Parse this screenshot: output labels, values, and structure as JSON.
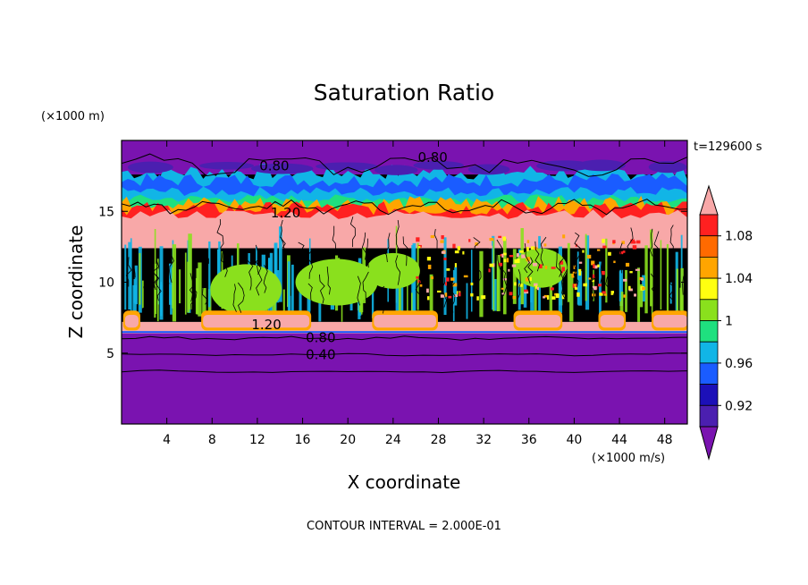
{
  "chart_data": {
    "type": "heatmap",
    "title": "Saturation Ratio",
    "xlabel": "X coordinate",
    "ylabel": "Z coordinate",
    "x_units": "(×1000 m/s)",
    "y_units": "(×1000 m)",
    "time_label": "t=129600 s",
    "footer": "CONTOUR INTERVAL = 2.000E-01",
    "xlim": [
      0,
      50
    ],
    "ylim": [
      0,
      20
    ],
    "x_ticks": [
      4,
      8,
      12,
      16,
      20,
      24,
      28,
      32,
      36,
      40,
      44,
      48
    ],
    "y_ticks": [
      5,
      10,
      15
    ],
    "colorbar": {
      "labels": [
        "1.08",
        "1.04",
        "1",
        "0.96",
        "0.92"
      ],
      "levels": [
        {
          "range": "< 0.90",
          "color": "#7a13b0"
        },
        {
          "range": "0.90-0.92",
          "color": "#4b1fb0"
        },
        {
          "range": "0.92-0.94",
          "color": "#1c10b8"
        },
        {
          "range": "0.94-0.96",
          "color": "#1a5cff"
        },
        {
          "range": "0.96-0.98",
          "color": "#11b5e6"
        },
        {
          "range": "0.98-1.00",
          "color": "#1fe07f"
        },
        {
          "range": "1.00-1.02",
          "color": "#8ae01d"
        },
        {
          "range": "1.02-1.04",
          "color": "#ffff10"
        },
        {
          "range": "1.04-1.06",
          "color": "#ffa500"
        },
        {
          "range": "1.06-1.08",
          "color": "#ff6a00"
        },
        {
          "range": "1.08-1.10",
          "color": "#ff2020"
        },
        {
          "range": "> 1.10",
          "color": "#f8a8a8"
        }
      ]
    },
    "bands": [
      {
        "z_range": [
          0,
          6.4
        ],
        "level": "< 0.90",
        "description": "lower dry layer"
      },
      {
        "z_range": [
          6.4,
          7.2
        ],
        "level": "> 1.10",
        "description": "supersaturated cloud-base patches"
      },
      {
        "z_range": [
          7.2,
          12.6
        ],
        "level": "0.98-1.02",
        "description": "turbulent near-saturated layer"
      },
      {
        "z_range": [
          12.6,
          15.8
        ],
        "level": "> 1.10",
        "description": "supersaturated upper cloud layer"
      },
      {
        "z_range": [
          15.8,
          17.6
        ],
        "level": "0.94-0.98",
        "description": "transition layer"
      },
      {
        "z_range": [
          17.6,
          20
        ],
        "level": "< 0.90",
        "description": "upper dry layer"
      }
    ],
    "contour_labels": [
      {
        "text": "0.80",
        "x": 13.5,
        "z": 18.2
      },
      {
        "text": "0.80",
        "x": 27.5,
        "z": 18.8
      },
      {
        "text": "1.20",
        "x": 14.5,
        "z": 14.9
      },
      {
        "text": "1.20",
        "x": 12.8,
        "z": 7.0
      },
      {
        "text": "0.80",
        "x": 17.6,
        "z": 6.1
      },
      {
        "text": "0.40",
        "x": 17.6,
        "z": 4.9
      }
    ]
  }
}
